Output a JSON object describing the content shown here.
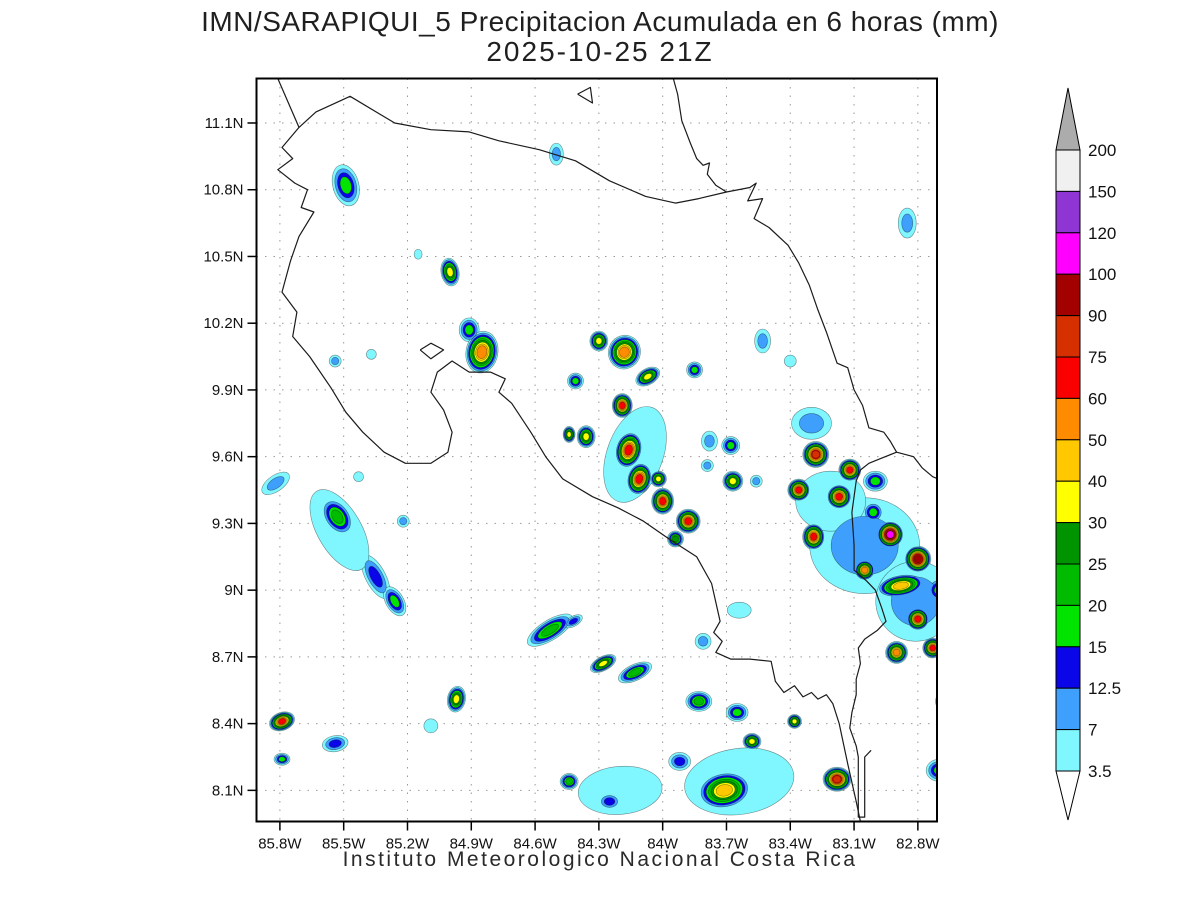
{
  "header": {
    "title": "IMN/SARAPIQUI_5 Precipitacion Acumulada en 6 horas (mm)",
    "subtitle": "2025-10-25 21Z"
  },
  "footer": {
    "credit": "Instituto Meteorologico Nacional Costa Rica"
  },
  "chart_data": {
    "type": "heatmap",
    "title": "IMN/SARAPIQUI_5 Precipitacion Acumulada en 6 horas (mm)",
    "subtitle": "2025-10-25 21Z",
    "units": "mm",
    "extent": {
      "lon_west": 85.91,
      "lon_east": 82.71,
      "lat_south": 7.96,
      "lat_north": 11.3
    },
    "grid": "dotted",
    "x_ticks": [
      {
        "lon": 85.8,
        "label": "85.8W"
      },
      {
        "lon": 85.5,
        "label": "85.5W"
      },
      {
        "lon": 85.2,
        "label": "85.2W"
      },
      {
        "lon": 84.9,
        "label": "84.9W"
      },
      {
        "lon": 84.6,
        "label": "84.6W"
      },
      {
        "lon": 84.3,
        "label": "84.3W"
      },
      {
        "lon": 84.0,
        "label": "84W"
      },
      {
        "lon": 83.7,
        "label": "83.7W"
      },
      {
        "lon": 83.4,
        "label": "83.4W"
      },
      {
        "lon": 83.1,
        "label": "83.1W"
      },
      {
        "lon": 82.8,
        "label": "82.8W"
      }
    ],
    "y_ticks": [
      {
        "lat": 11.1,
        "label": "11.1N"
      },
      {
        "lat": 10.8,
        "label": "10.8N"
      },
      {
        "lat": 10.5,
        "label": "10.5N"
      },
      {
        "lat": 10.2,
        "label": "10.2N"
      },
      {
        "lat": 9.9,
        "label": "9.9N"
      },
      {
        "lat": 9.6,
        "label": "9.6N"
      },
      {
        "lat": 9.3,
        "label": "9.3N"
      },
      {
        "lat": 9.0,
        "label": "9N"
      },
      {
        "lat": 8.7,
        "label": "8.7N"
      },
      {
        "lat": 8.4,
        "label": "8.4N"
      },
      {
        "lat": 8.1,
        "label": "8.1N"
      }
    ],
    "levels": [
      3.5,
      7,
      12.5,
      15,
      20,
      25,
      30,
      40,
      50,
      60,
      75,
      90,
      100,
      120,
      150,
      200
    ],
    "level_colors": [
      "#80F7FF",
      "#3F9FFC",
      "#0A06E8",
      "#00E400",
      "#00BB00",
      "#009400",
      "#FFFF00",
      "#FFC800",
      "#FF8C00",
      "#FA0000",
      "#D62F00",
      "#A30000",
      "#FF00FF",
      "#8E35D4",
      "#F0F0F0"
    ],
    "colorbar": {
      "labels": [
        "200",
        "150",
        "120",
        "100",
        "90",
        "75",
        "60",
        "50",
        "40",
        "30",
        "25",
        "20",
        "15",
        "12.5",
        "7",
        "3.5"
      ],
      "over_arrow_color": "#ACACAC",
      "under_arrow_color": "#FFFFFF"
    },
    "cells_format": [
      "lon",
      "lat",
      "peak_level_mm",
      "rx_px",
      "ry_px",
      "rotation_deg"
    ],
    "cells": [
      [
        85.49,
        10.82,
        15,
        13,
        21,
        -15
      ],
      [
        84.5,
        10.96,
        7,
        7,
        11,
        0
      ],
      [
        82.85,
        10.65,
        7,
        9,
        15,
        0
      ],
      [
        85.0,
        10.43,
        30,
        9,
        14,
        -10
      ],
      [
        85.15,
        10.51,
        3.5,
        4,
        5,
        0
      ],
      [
        84.91,
        10.17,
        15,
        10,
        12,
        0
      ],
      [
        84.85,
        10.07,
        50,
        16,
        21,
        10
      ],
      [
        85.54,
        10.03,
        7,
        6,
        6,
        0
      ],
      [
        85.37,
        10.06,
        3.5,
        5,
        5,
        0
      ],
      [
        84.3,
        10.12,
        30,
        9,
        10,
        0
      ],
      [
        84.18,
        10.07,
        50,
        16,
        17,
        20
      ],
      [
        84.07,
        9.96,
        30,
        13,
        8,
        -30
      ],
      [
        83.85,
        9.99,
        15,
        8,
        8,
        0
      ],
      [
        83.53,
        10.12,
        7,
        8,
        12,
        0
      ],
      [
        83.4,
        10.03,
        3.5,
        6,
        6,
        0
      ],
      [
        84.19,
        9.83,
        60,
        10,
        12,
        0
      ],
      [
        84.41,
        9.94,
        15,
        8,
        8,
        0
      ],
      [
        84.36,
        9.69,
        30,
        9,
        11,
        0
      ],
      [
        84.44,
        9.7,
        30,
        6,
        8,
        0
      ],
      [
        84.16,
        9.63,
        60,
        13,
        18,
        15
      ],
      [
        84.11,
        9.5,
        60,
        12,
        16,
        15
      ],
      [
        84.02,
        9.5,
        30,
        8,
        8,
        0
      ],
      [
        84.0,
        9.4,
        60,
        11,
        13,
        0
      ],
      [
        83.88,
        9.31,
        60,
        12,
        12,
        0
      ],
      [
        83.94,
        9.23,
        25,
        8,
        8,
        0
      ],
      [
        83.78,
        9.67,
        7,
        8,
        10,
        0
      ],
      [
        83.68,
        9.65,
        15,
        9,
        9,
        0
      ],
      [
        83.67,
        9.49,
        30,
        10,
        10,
        0
      ],
      [
        83.79,
        9.56,
        7,
        6,
        6,
        0
      ],
      [
        83.56,
        9.49,
        7,
        6,
        6,
        0
      ],
      [
        83.28,
        9.61,
        75,
        13,
        13,
        0
      ],
      [
        83.12,
        9.54,
        60,
        11,
        11,
        0
      ],
      [
        83.36,
        9.45,
        60,
        11,
        11,
        0
      ],
      [
        83.17,
        9.42,
        60,
        12,
        12,
        0
      ],
      [
        83.29,
        9.24,
        60,
        11,
        13,
        0
      ],
      [
        82.93,
        9.25,
        100,
        13,
        13,
        0
      ],
      [
        82.8,
        9.14,
        90,
        13,
        13,
        0
      ],
      [
        83.05,
        9.09,
        50,
        10,
        10,
        0
      ],
      [
        82.88,
        9.02,
        40,
        24,
        11,
        -10
      ],
      [
        82.8,
        8.87,
        60,
        11,
        11,
        0
      ],
      [
        82.73,
        8.74,
        60,
        10,
        10,
        0
      ],
      [
        82.9,
        8.72,
        50,
        11,
        11,
        0
      ],
      [
        83.01,
        9.35,
        15,
        10,
        10,
        0
      ],
      [
        82.7,
        9.0,
        15,
        12,
        12,
        0
      ],
      [
        82.63,
        9.13,
        7,
        8,
        10,
        0
      ],
      [
        83.0,
        9.49,
        15,
        12,
        10,
        0
      ],
      [
        83.05,
        9.2,
        7,
        55,
        48,
        0
      ],
      [
        82.81,
        8.95,
        7,
        40,
        40,
        0
      ],
      [
        83.21,
        9.4,
        3.5,
        35,
        30,
        0
      ],
      [
        83.3,
        9.75,
        7,
        20,
        16,
        0
      ],
      [
        85.82,
        9.48,
        7,
        16,
        8,
        -35
      ],
      [
        85.53,
        9.33,
        20,
        13,
        20,
        -35
      ],
      [
        85.35,
        9.06,
        12.5,
        10,
        24,
        -28
      ],
      [
        85.26,
        8.95,
        15,
        9,
        16,
        -30
      ],
      [
        85.43,
        9.51,
        3.5,
        5,
        5,
        0
      ],
      [
        85.22,
        9.31,
        7,
        6,
        6,
        0
      ],
      [
        85.52,
        9.27,
        3.5,
        22,
        45,
        -30
      ],
      [
        85.79,
        8.41,
        60,
        13,
        9,
        -20
      ],
      [
        85.54,
        8.31,
        12.5,
        13,
        8,
        -10
      ],
      [
        85.79,
        8.24,
        15,
        8,
        6,
        0
      ],
      [
        84.97,
        8.51,
        30,
        9,
        13,
        10
      ],
      [
        85.09,
        8.39,
        3.5,
        7,
        7,
        0
      ],
      [
        84.53,
        8.82,
        20,
        26,
        10,
        -32
      ],
      [
        84.42,
        8.86,
        12.5,
        10,
        5,
        -30
      ],
      [
        84.28,
        8.67,
        30,
        14,
        7,
        -28
      ],
      [
        84.13,
        8.63,
        20,
        18,
        8,
        -25
      ],
      [
        83.83,
        8.5,
        20,
        13,
        10,
        0
      ],
      [
        83.65,
        8.45,
        15,
        11,
        9,
        0
      ],
      [
        83.58,
        8.32,
        30,
        9,
        8,
        0
      ],
      [
        83.38,
        8.41,
        30,
        7,
        7,
        0
      ],
      [
        83.71,
        8.1,
        40,
        26,
        18,
        -10
      ],
      [
        83.92,
        8.23,
        12.5,
        11,
        9,
        0
      ],
      [
        84.25,
        8.05,
        12.5,
        11,
        8,
        0
      ],
      [
        84.44,
        8.14,
        20,
        9,
        8,
        0
      ],
      [
        83.18,
        8.15,
        75,
        14,
        12,
        0
      ],
      [
        82.7,
        8.19,
        15,
        13,
        11,
        0
      ],
      [
        82.67,
        8.5,
        12.5,
        10,
        10,
        0
      ],
      [
        83.64,
        8.14,
        3.5,
        55,
        33,
        -8
      ],
      [
        84.2,
        8.1,
        3.5,
        42,
        24,
        -5
      ],
      [
        83.81,
        8.77,
        7,
        8,
        8,
        0
      ],
      [
        83.64,
        8.91,
        3.5,
        12,
        8,
        0
      ],
      [
        84.13,
        9.61,
        3.5,
        28,
        50,
        20
      ]
    ],
    "coastlines": [
      {
        "name": "nicaragua-border-caribbean-coast",
        "points": [
          [
            85.81,
            11.3
          ],
          [
            85.71,
            11.08
          ],
          [
            85.63,
            11.15
          ],
          [
            85.47,
            11.22
          ],
          [
            85.26,
            11.1
          ],
          [
            85.09,
            11.07
          ],
          [
            84.91,
            11.06
          ],
          [
            84.77,
            11.02
          ],
          [
            84.58,
            10.98
          ],
          [
            84.41,
            10.93
          ],
          [
            84.25,
            10.84
          ],
          [
            84.08,
            10.77
          ],
          [
            83.94,
            10.74
          ],
          [
            83.83,
            10.76
          ],
          [
            83.7,
            10.79
          ],
          [
            83.59,
            10.81
          ],
          [
            83.56,
            10.83
          ],
          [
            83.6,
            10.75
          ],
          [
            83.53,
            10.76
          ],
          [
            83.57,
            10.67
          ],
          [
            83.5,
            10.63
          ],
          [
            83.41,
            10.55
          ],
          [
            83.36,
            10.47
          ],
          [
            83.31,
            10.37
          ],
          [
            83.27,
            10.26
          ],
          [
            83.23,
            10.16
          ],
          [
            83.18,
            10.02
          ],
          [
            83.13,
            10.0
          ],
          [
            83.1,
            9.9
          ],
          [
            83.06,
            9.83
          ],
          [
            83.03,
            9.73
          ],
          [
            82.96,
            9.71
          ],
          [
            82.93,
            9.67
          ],
          [
            82.9,
            9.62
          ],
          [
            82.82,
            9.6
          ],
          [
            82.78,
            9.55
          ],
          [
            82.73,
            9.51
          ],
          [
            82.68,
            9.49
          ]
        ]
      },
      {
        "name": "pacific-coast",
        "points": [
          [
            85.71,
            11.08
          ],
          [
            85.79,
            10.99
          ],
          [
            85.74,
            10.94
          ],
          [
            85.81,
            10.89
          ],
          [
            85.73,
            10.83
          ],
          [
            85.67,
            10.8
          ],
          [
            85.7,
            10.72
          ],
          [
            85.64,
            10.7
          ],
          [
            85.71,
            10.59
          ],
          [
            85.75,
            10.48
          ],
          [
            85.79,
            10.34
          ],
          [
            85.72,
            10.25
          ],
          [
            85.74,
            10.14
          ],
          [
            85.66,
            10.05
          ],
          [
            85.56,
            9.91
          ],
          [
            85.49,
            9.8
          ],
          [
            85.41,
            9.71
          ],
          [
            85.31,
            9.62
          ],
          [
            85.21,
            9.57
          ],
          [
            85.09,
            9.57
          ],
          [
            85.01,
            9.62
          ],
          [
            84.99,
            9.71
          ],
          [
            85.03,
            9.81
          ],
          [
            85.09,
            9.89
          ],
          [
            85.06,
            9.98
          ],
          [
            84.99,
            10.03
          ],
          [
            84.91,
            9.98
          ],
          [
            84.81,
            9.98
          ],
          [
            84.74,
            9.95
          ],
          [
            84.77,
            9.89
          ],
          [
            84.71,
            9.84
          ],
          [
            84.62,
            9.71
          ],
          [
            84.55,
            9.6
          ],
          [
            84.47,
            9.5
          ],
          [
            84.33,
            9.42
          ],
          [
            84.21,
            9.37
          ],
          [
            84.09,
            9.31
          ],
          [
            83.97,
            9.23
          ],
          [
            83.84,
            9.15
          ],
          [
            83.77,
            9.03
          ],
          [
            83.73,
            8.86
          ],
          [
            83.76,
            8.81
          ],
          [
            83.72,
            8.77
          ],
          [
            83.75,
            8.72
          ],
          [
            83.68,
            8.69
          ],
          [
            83.59,
            8.69
          ],
          [
            83.49,
            8.68
          ],
          [
            83.47,
            8.59
          ],
          [
            83.43,
            8.54
          ],
          [
            83.38,
            8.57
          ],
          [
            83.34,
            8.52
          ],
          [
            83.3,
            8.54
          ],
          [
            83.27,
            8.51
          ],
          [
            83.23,
            8.53
          ],
          [
            83.2,
            8.49
          ],
          [
            83.17,
            8.4
          ],
          [
            83.13,
            8.22
          ],
          [
            83.09,
            8.05
          ],
          [
            83.07,
            7.96
          ]
        ]
      },
      {
        "name": "panama-border",
        "points": [
          [
            82.9,
            9.62
          ],
          [
            82.98,
            9.59
          ],
          [
            83.03,
            9.57
          ],
          [
            83.07,
            9.54
          ],
          [
            83.09,
            9.49
          ],
          [
            83.11,
            9.35
          ],
          [
            83.1,
            9.2
          ],
          [
            83.1,
            9.09
          ],
          [
            83.04,
            9.04
          ],
          [
            83.0,
            9.0
          ],
          [
            82.97,
            8.92
          ],
          [
            82.95,
            8.86
          ],
          [
            82.99,
            8.82
          ],
          [
            83.05,
            8.78
          ],
          [
            83.08,
            8.74
          ],
          [
            83.07,
            8.67
          ],
          [
            83.09,
            8.6
          ],
          [
            83.09,
            8.53
          ],
          [
            83.11,
            8.45
          ],
          [
            83.12,
            8.38
          ],
          [
            83.09,
            8.3
          ],
          [
            83.08,
            8.25
          ],
          [
            83.08,
            7.98
          ],
          [
            83.05,
            7.98
          ],
          [
            83.05,
            8.25
          ],
          [
            83.02,
            8.28
          ]
        ]
      },
      {
        "name": "nicaragua-caribbean-coast",
        "points": [
          [
            83.95,
            11.3
          ],
          [
            83.93,
            11.23
          ],
          [
            83.91,
            11.11
          ],
          [
            83.87,
            11.01
          ],
          [
            83.84,
            10.94
          ],
          [
            83.81,
            10.91
          ],
          [
            83.78,
            10.92
          ],
          [
            83.79,
            10.87
          ],
          [
            83.75,
            10.82
          ],
          [
            83.7,
            10.79
          ]
        ]
      },
      {
        "name": "chira-island",
        "points": [
          [
            85.14,
            10.08
          ],
          [
            85.09,
            10.11
          ],
          [
            85.03,
            10.08
          ],
          [
            85.09,
            10.04
          ],
          [
            85.14,
            10.08
          ]
        ]
      },
      {
        "name": "lake-island",
        "points": [
          [
            84.4,
            11.23
          ],
          [
            84.34,
            11.26
          ],
          [
            84.33,
            11.19
          ],
          [
            84.4,
            11.23
          ]
        ]
      }
    ]
  }
}
